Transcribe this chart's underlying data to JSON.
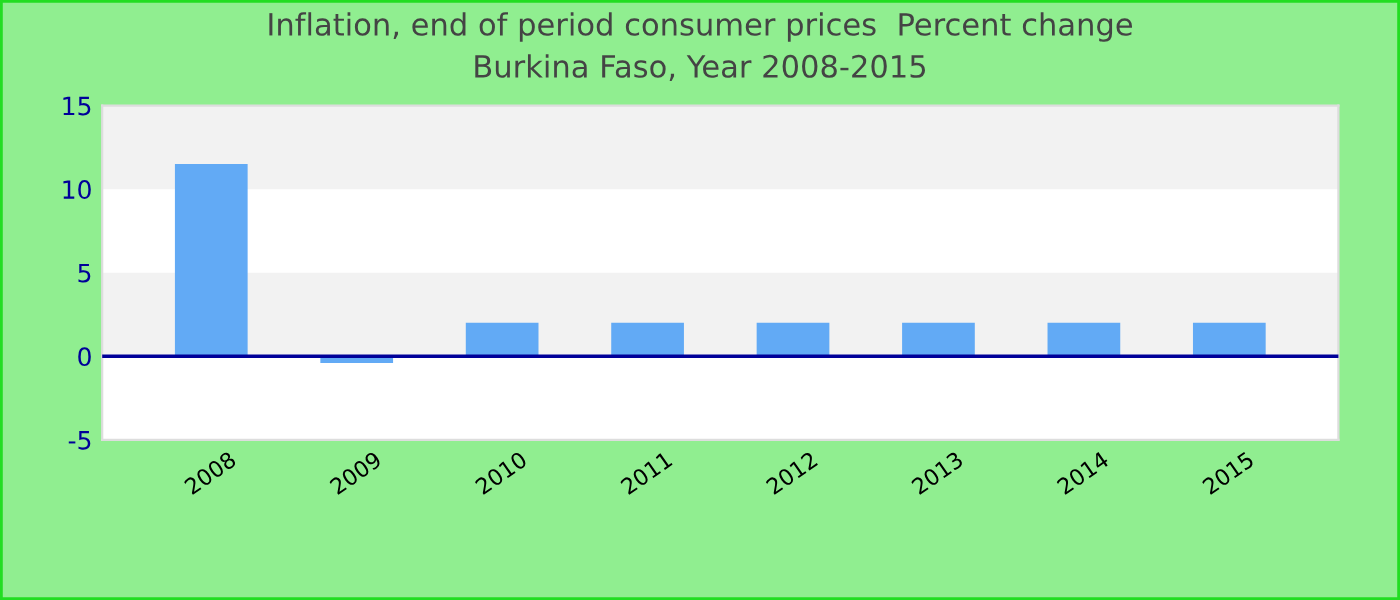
{
  "chart_data": {
    "type": "bar",
    "title": "Inflation, end of period consumer prices  Percent change",
    "subtitle": "Burkina Faso, Year 2008-2015",
    "categories": [
      "2008",
      "2009",
      "2010",
      "2011",
      "2012",
      "2013",
      "2014",
      "2015"
    ],
    "series": [
      {
        "color": "#62aaf5",
        "values": [
          11.5,
          -0.4,
          2.0,
          2.0,
          2.0,
          2.0,
          2.0,
          2.0
        ]
      }
    ],
    "ylim": [
      -5,
      15
    ],
    "yticks": [
      -5,
      0,
      5,
      10,
      15
    ],
    "legend": false,
    "bands": [
      {
        "axis": "y",
        "from": 0,
        "to": 5,
        "color": "#f2f2f2"
      },
      {
        "axis": "y",
        "from": 10,
        "to": 15,
        "color": "#f2f2f2"
      }
    ],
    "ref_lines": [
      {
        "axis": "y",
        "value": 0,
        "color": "#000099",
        "line_style": "solid"
      }
    ]
  }
}
